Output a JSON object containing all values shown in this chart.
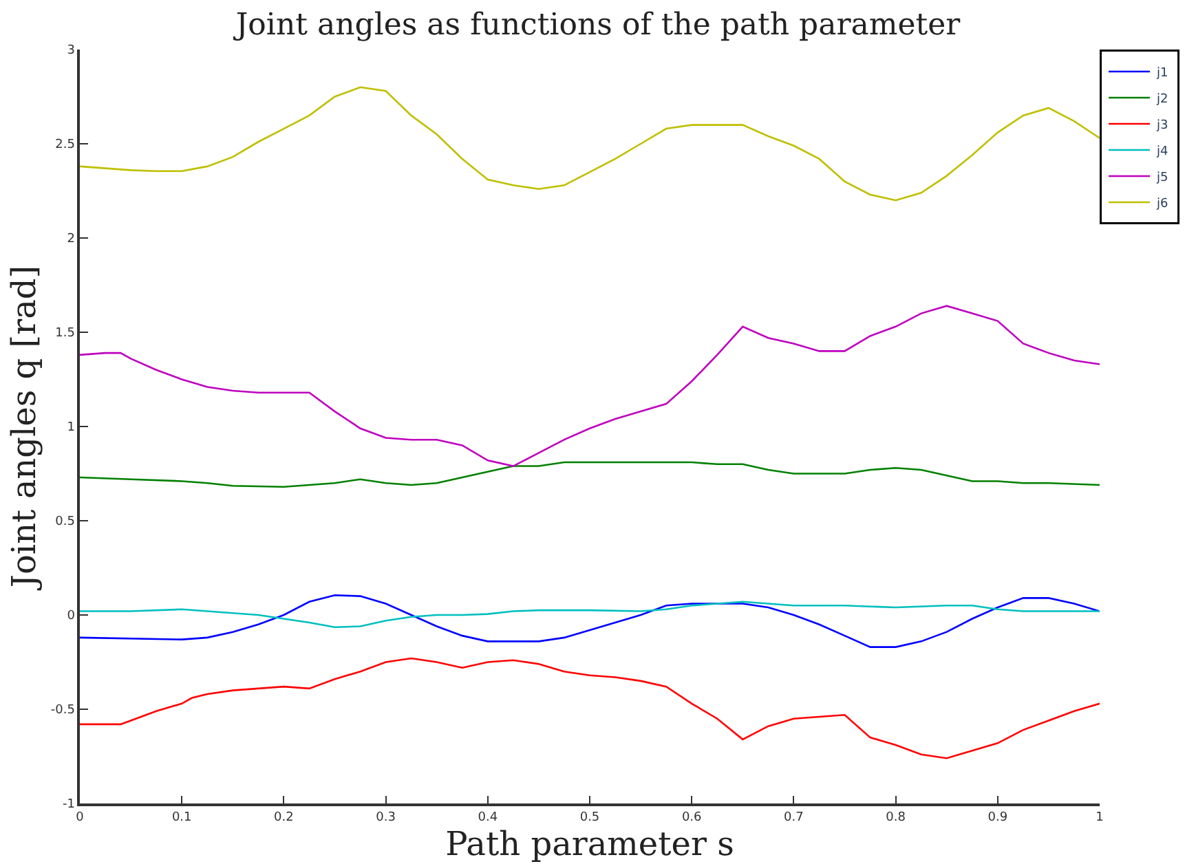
{
  "chart_data": {
    "type": "line",
    "title": "Joint angles as functions of the path parameter",
    "xlabel": "Path parameter s",
    "ylabel": "Joint angles q [rad]",
    "xlim": [
      0,
      1
    ],
    "xticks": [
      0,
      0.1,
      0.2,
      0.3,
      0.4,
      0.5,
      0.6,
      0.7,
      0.8,
      0.9,
      1
    ],
    "ylim": [
      -1,
      3
    ],
    "yticks": [
      -1,
      -0.5,
      0,
      0.5,
      1,
      1.5,
      2,
      2.5,
      3
    ],
    "legend": "top right",
    "marker": "none",
    "line_style": "solid",
    "series": [
      {
        "name": "j1",
        "color": "#0000ff",
        "x": [
          0,
          0.1,
          0.125,
          0.15,
          0.175,
          0.2,
          0.225,
          0.25,
          0.275,
          0.3,
          0.325,
          0.35,
          0.375,
          0.4,
          0.45,
          0.475,
          0.5,
          0.525,
          0.55,
          0.575,
          0.6,
          0.65,
          0.675,
          0.7,
          0.725,
          0.75,
          0.775,
          0.8,
          0.825,
          0.85,
          0.875,
          0.9,
          0.925,
          0.95,
          0.975,
          1
        ],
        "values": [
          -0.12,
          -0.13,
          -0.12,
          -0.09,
          -0.05,
          0.0,
          0.07,
          0.105,
          0.1,
          0.06,
          0.0,
          -0.06,
          -0.11,
          -0.14,
          -0.14,
          -0.12,
          -0.08,
          -0.04,
          0.0,
          0.05,
          0.06,
          0.06,
          0.04,
          0.0,
          -0.05,
          -0.11,
          -0.17,
          -0.17,
          -0.14,
          -0.09,
          -0.02,
          0.04,
          0.09,
          0.09,
          0.06,
          0.02
        ]
      },
      {
        "name": "j2",
        "color": "#008000",
        "x": [
          0,
          0.05,
          0.1,
          0.125,
          0.15,
          0.2,
          0.25,
          0.275,
          0.3,
          0.325,
          0.35,
          0.375,
          0.4,
          0.425,
          0.45,
          0.475,
          0.5,
          0.55,
          0.6,
          0.625,
          0.65,
          0.675,
          0.7,
          0.75,
          0.775,
          0.8,
          0.825,
          0.85,
          0.875,
          0.9,
          0.925,
          0.95,
          1
        ],
        "values": [
          0.73,
          0.72,
          0.71,
          0.7,
          0.685,
          0.68,
          0.7,
          0.72,
          0.7,
          0.69,
          0.7,
          0.73,
          0.76,
          0.79,
          0.79,
          0.81,
          0.81,
          0.81,
          0.81,
          0.8,
          0.8,
          0.77,
          0.75,
          0.75,
          0.77,
          0.78,
          0.77,
          0.74,
          0.71,
          0.71,
          0.7,
          0.7,
          0.69
        ]
      },
      {
        "name": "j3",
        "color": "#ff0000",
        "x": [
          0,
          0.04,
          0.05,
          0.075,
          0.1,
          0.11,
          0.125,
          0.15,
          0.2,
          0.225,
          0.25,
          0.275,
          0.3,
          0.325,
          0.35,
          0.375,
          0.4,
          0.425,
          0.45,
          0.475,
          0.5,
          0.525,
          0.55,
          0.575,
          0.6,
          0.625,
          0.65,
          0.675,
          0.7,
          0.725,
          0.75,
          0.775,
          0.8,
          0.825,
          0.85,
          0.875,
          0.9,
          0.925,
          0.95,
          0.975,
          1
        ],
        "values": [
          -0.58,
          -0.58,
          -0.56,
          -0.51,
          -0.47,
          -0.44,
          -0.42,
          -0.4,
          -0.38,
          -0.39,
          -0.34,
          -0.3,
          -0.25,
          -0.23,
          -0.25,
          -0.28,
          -0.25,
          -0.24,
          -0.26,
          -0.3,
          -0.32,
          -0.33,
          -0.35,
          -0.38,
          -0.47,
          -0.55,
          -0.66,
          -0.59,
          -0.55,
          -0.54,
          -0.53,
          -0.65,
          -0.69,
          -0.74,
          -0.76,
          -0.72,
          -0.68,
          -0.61,
          -0.56,
          -0.51,
          -0.47
        ]
      },
      {
        "name": "j4",
        "color": "#00bfbf",
        "x": [
          0,
          0.05,
          0.1,
          0.15,
          0.175,
          0.2,
          0.225,
          0.25,
          0.275,
          0.3,
          0.325,
          0.35,
          0.375,
          0.4,
          0.425,
          0.45,
          0.5,
          0.55,
          0.575,
          0.6,
          0.65,
          0.675,
          0.7,
          0.75,
          0.8,
          0.85,
          0.875,
          0.9,
          0.925,
          0.95,
          1
        ],
        "values": [
          0.02,
          0.02,
          0.03,
          0.01,
          0.0,
          -0.02,
          -0.04,
          -0.065,
          -0.06,
          -0.03,
          -0.01,
          0.0,
          0.0,
          0.005,
          0.02,
          0.025,
          0.025,
          0.02,
          0.03,
          0.05,
          0.07,
          0.06,
          0.05,
          0.05,
          0.04,
          0.05,
          0.05,
          0.03,
          0.02,
          0.02,
          0.02
        ]
      },
      {
        "name": "j5",
        "color": "#bf00bf",
        "x": [
          0,
          0.025,
          0.04,
          0.05,
          0.075,
          0.1,
          0.125,
          0.15,
          0.175,
          0.2,
          0.225,
          0.25,
          0.275,
          0.3,
          0.325,
          0.35,
          0.375,
          0.4,
          0.425,
          0.45,
          0.475,
          0.5,
          0.525,
          0.55,
          0.575,
          0.6,
          0.625,
          0.65,
          0.675,
          0.7,
          0.725,
          0.75,
          0.775,
          0.8,
          0.825,
          0.85,
          0.875,
          0.9,
          0.925,
          0.95,
          0.975,
          1
        ],
        "values": [
          1.38,
          1.39,
          1.39,
          1.36,
          1.3,
          1.25,
          1.21,
          1.19,
          1.18,
          1.18,
          1.18,
          1.08,
          0.99,
          0.94,
          0.93,
          0.93,
          0.9,
          0.82,
          0.79,
          0.86,
          0.93,
          0.99,
          1.04,
          1.08,
          1.12,
          1.24,
          1.38,
          1.53,
          1.47,
          1.44,
          1.4,
          1.4,
          1.48,
          1.53,
          1.6,
          1.64,
          1.6,
          1.56,
          1.44,
          1.39,
          1.35,
          1.33
        ]
      },
      {
        "name": "j6",
        "color": "#bfbf00",
        "x": [
          0,
          0.025,
          0.05,
          0.075,
          0.1,
          0.125,
          0.15,
          0.175,
          0.2,
          0.225,
          0.25,
          0.275,
          0.3,
          0.325,
          0.35,
          0.375,
          0.4,
          0.425,
          0.45,
          0.475,
          0.5,
          0.525,
          0.55,
          0.575,
          0.6,
          0.625,
          0.65,
          0.675,
          0.7,
          0.725,
          0.75,
          0.775,
          0.8,
          0.825,
          0.85,
          0.875,
          0.9,
          0.925,
          0.95,
          0.975,
          1
        ],
        "values": [
          2.38,
          2.37,
          2.36,
          2.355,
          2.355,
          2.38,
          2.43,
          2.51,
          2.58,
          2.65,
          2.75,
          2.8,
          2.78,
          2.65,
          2.55,
          2.42,
          2.31,
          2.28,
          2.26,
          2.28,
          2.35,
          2.42,
          2.5,
          2.58,
          2.6,
          2.6,
          2.6,
          2.54,
          2.49,
          2.42,
          2.3,
          2.23,
          2.2,
          2.24,
          2.33,
          2.44,
          2.56,
          2.65,
          2.69,
          2.62,
          2.53
        ]
      }
    ]
  }
}
